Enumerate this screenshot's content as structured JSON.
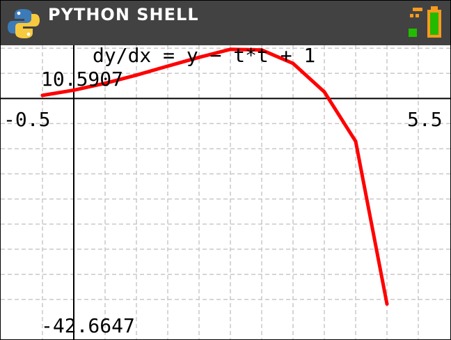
{
  "app": {
    "title": "PYTHON SHELL"
  },
  "icons": {
    "logo": "python-logo-icon",
    "status": "battery-icon"
  },
  "colors": {
    "titlebar": "#424242",
    "curve": "#ff0000",
    "grid": "#c8c8c8",
    "axis": "#000000",
    "python_blue": "#3d7ab8",
    "python_yellow": "#f7c93e",
    "battery_green": "#22bb00",
    "battery_orange": "#f79a1e"
  },
  "plot": {
    "equation": "dy/dx = y − t*t + 1",
    "x_min_label": "-0.5",
    "x_max_label": "5.5",
    "y_max_label": "10.5907",
    "y_min_label": "-42.6647"
  },
  "chart_data": {
    "type": "line",
    "title": "dy/dx = y − t*t + 1",
    "xlim": [
      -0.5,
      5.5
    ],
    "ylim": [
      -42.6647,
      10.5907
    ],
    "grid": true,
    "series": [
      {
        "x": [
          -0.5,
          0.0,
          0.5,
          1.0,
          1.5,
          2.0,
          2.5,
          3.0,
          3.5,
          4.0,
          4.5,
          5.0
        ],
        "y": [
          0.625,
          1.656,
          3.016,
          4.656,
          6.438,
          8.188,
          9.781,
          9.656,
          6.984,
          1.313,
          -8.531,
          -40.9
        ]
      }
    ]
  }
}
